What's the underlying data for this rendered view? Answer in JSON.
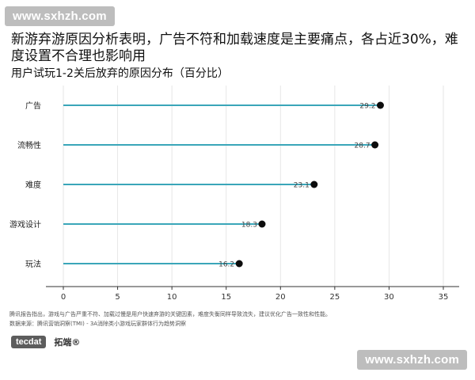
{
  "watermark": {
    "text": "www.sxhzh.com"
  },
  "headline": "新游弃游原因分析表明，广告不符和加载速度是主要痛点，各占近30%，难度设置不合理也影响用",
  "footnotes": [
    "腾讯报告指出，游戏与广告严重不符、加载过慢是用户快速弃游的关键因素，难度失衡同样导致流失，建议优化广告一致性和性能。",
    "数据来源：腾讯营销洞察(TMI) - 3A消除类小游戏玩家群体行为趋势洞察"
  ],
  "logos": {
    "tecdat": "tecdat",
    "tuoduan": "拓端®"
  },
  "chart_data": {
    "type": "lollipop",
    "title": "用户试玩1-2关后放弃的原因分布（百分比）",
    "categories": [
      "广告",
      "流畅性",
      "难度",
      "游戏设计",
      "玩法"
    ],
    "values": [
      29.2,
      28.7,
      23.1,
      18.3,
      16.2
    ],
    "value_labels": [
      "29.2",
      "28.7",
      "23.1",
      "18.3",
      "16.2"
    ],
    "xlim": [
      0,
      35
    ],
    "xticks": [
      0,
      5,
      10,
      15,
      20,
      25,
      30,
      35
    ],
    "orientation": "horizontal",
    "grid": "vertical",
    "colors": {
      "stem": "#3aa6b9",
      "dot": "#0d0d0d",
      "grid": "#e6e6e6",
      "axis": "#333333"
    }
  }
}
